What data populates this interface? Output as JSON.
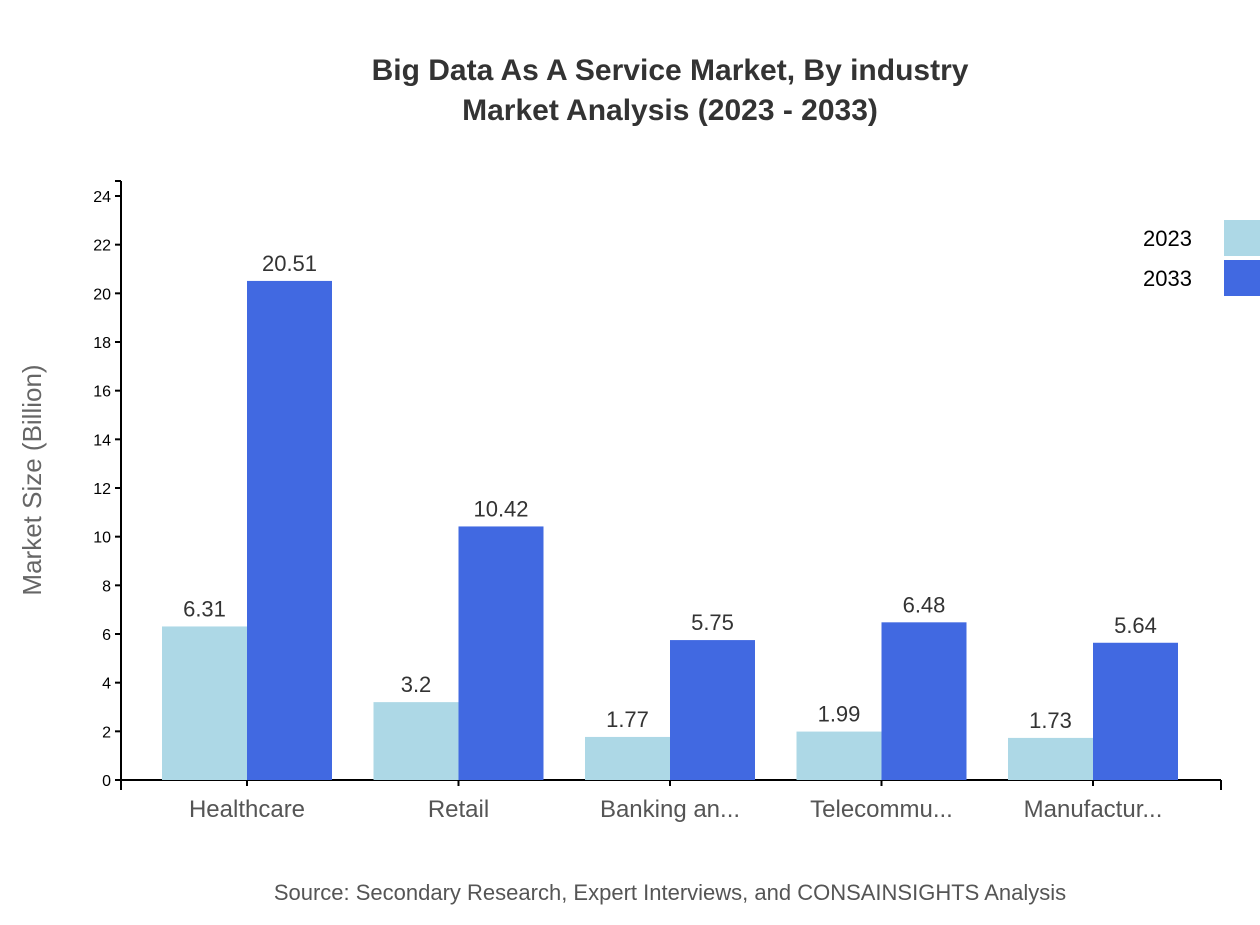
{
  "chart_data": {
    "type": "bar",
    "title": "Big Data As A Service Market, By industry",
    "subtitle": "Market Analysis (2023 - 2033)",
    "xlabel": "",
    "ylabel": "Market Size (Billion)",
    "ylim": [
      0,
      24
    ],
    "yticks": [
      0,
      2,
      4,
      6,
      8,
      10,
      12,
      14,
      16,
      18,
      20,
      22,
      24
    ],
    "categories": [
      "Healthcare",
      "Retail",
      "Banking an...",
      "Telecommu...",
      "Manufactur..."
    ],
    "series": [
      {
        "name": "2023",
        "color": "#ADD8E6",
        "values": [
          6.31,
          3.2,
          1.77,
          1.99,
          1.73
        ]
      },
      {
        "name": "2033",
        "color": "#4169E1",
        "values": [
          20.51,
          10.42,
          5.75,
          6.48,
          5.64
        ]
      }
    ],
    "legend_position": "top-right",
    "grid": false,
    "source": "Source: Secondary Research, Expert Interviews, and CONSAINSIGHTS Analysis"
  }
}
